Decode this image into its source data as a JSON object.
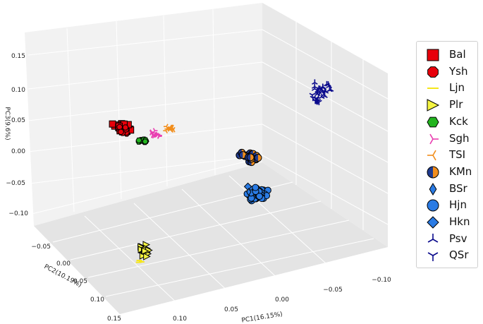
{
  "chart_data": {
    "type": "scatter",
    "dimensions": 3,
    "title": "",
    "axes": {
      "x": {
        "label": "PC1(16.15%)",
        "ticks": [
          "0.10",
          "0.05",
          "0.00",
          "−0.05",
          "−0.10"
        ]
      },
      "y": {
        "label": "PC2(10.19%)",
        "ticks": [
          "−0.05",
          "0.00",
          "0.05",
          "0.10",
          "0.15"
        ]
      },
      "z": {
        "label": "PC3(9.6%)",
        "ticks": [
          "0.15",
          "0.10",
          "0.05",
          "0.00",
          "−0.05",
          "−0.10"
        ]
      }
    },
    "grid": true,
    "legend_position": "right",
    "series": [
      {
        "name": "Bal",
        "marker": "square",
        "color": "#e8000b",
        "edge": "#000000"
      },
      {
        "name": "Ysh",
        "marker": "octagon",
        "color": "#e8000b",
        "edge": "#000000"
      },
      {
        "name": "Ljn",
        "marker": "hline",
        "color": "#f5e61a",
        "edge": "#f5e61a"
      },
      {
        "name": "Plr",
        "marker": "triangle-right",
        "color": "#f5f542",
        "edge": "#000000"
      },
      {
        "name": "Kck",
        "marker": "hexagon",
        "color": "#22b41e",
        "edge": "#000000"
      },
      {
        "name": "Sgh",
        "marker": "tri-left",
        "color": "#e93fb1",
        "edge": "#e93fb1"
      },
      {
        "name": "TSI",
        "marker": "tri-right",
        "color": "#f28e1c",
        "edge": "#f28e1c"
      },
      {
        "name": "KMn",
        "marker": "half-circle",
        "color": "#1f3b8f",
        "color2": "#f28e1c",
        "edge": "#000000"
      },
      {
        "name": "BSr",
        "marker": "thin-diamond",
        "color": "#2a7be4",
        "edge": "#000000"
      },
      {
        "name": "Hjn",
        "marker": "circle",
        "color": "#2a7be4",
        "edge": "#000000"
      },
      {
        "name": "Hkn",
        "marker": "diamond",
        "color": "#2a7be4",
        "edge": "#000000"
      },
      {
        "name": "Psv",
        "marker": "tri-down",
        "color": "#0a0a8c",
        "edge": "#0a0a8c"
      },
      {
        "name": "QSr",
        "marker": "tri-up",
        "color": "#0a0a8c",
        "edge": "#0a0a8c"
      }
    ]
  }
}
